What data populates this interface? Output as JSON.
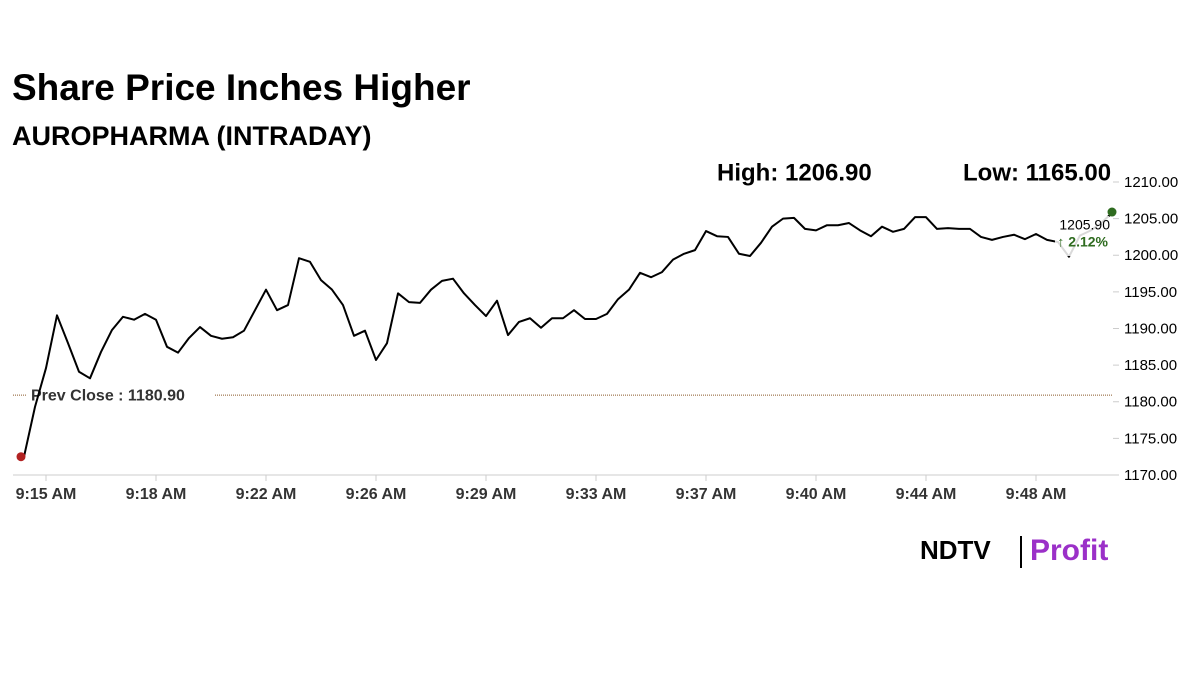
{
  "chart_data": {
    "type": "line",
    "title": "Share Price Inches Higher",
    "subtitle": "AUROPHARMA (INTRADAY)",
    "high_label": "High: 1206.90",
    "low_label": "Low: 1165.00",
    "change_label": "↑ 2.12%",
    "reference_line": {
      "value": 1180.9,
      "label": "Prev Close : 1180.90",
      "color": "#8b5a2b"
    },
    "start_marker_color": "#b22222",
    "end_marker_color": "#2e6b1f",
    "change_color": "#2e6b1f",
    "categories": [
      null,
      null,
      "9:15 AM",
      null,
      null,
      null,
      null,
      null,
      null,
      null,
      null,
      null,
      "9:18 AM",
      null,
      null,
      null,
      null,
      null,
      null,
      null,
      null,
      null,
      "9:22 AM",
      null,
      null,
      null,
      null,
      null,
      null,
      null,
      null,
      null,
      "9:26 AM",
      null,
      null,
      null,
      null,
      null,
      null,
      null,
      null,
      null,
      "9:29 AM",
      null,
      null,
      null,
      null,
      null,
      null,
      null,
      null,
      null,
      "9:33 AM",
      null,
      null,
      null,
      null,
      null,
      null,
      null,
      null,
      null,
      "9:37 AM",
      null,
      null,
      null,
      null,
      null,
      null,
      null,
      null,
      null,
      "9:40 AM",
      null,
      null,
      null,
      null,
      null,
      null,
      null,
      null,
      null,
      "9:44 AM",
      null,
      null,
      null,
      null,
      null,
      null,
      null,
      null,
      null,
      "9:48 AM",
      null,
      null,
      null,
      null,
      null,
      null,
      null
    ],
    "series": [
      {
        "color": "#000000",
        "values": [
          1172.5,
          1179.3,
          1184.6,
          1191.8,
          1188.0,
          1184.1,
          1183.2,
          1186.8,
          1189.8,
          1191.6,
          1191.2,
          1192.0,
          1191.2,
          1187.5,
          1186.7,
          1188.7,
          1190.2,
          1189.0,
          1188.6,
          1188.8,
          1189.7,
          1192.5,
          1195.3,
          1192.5,
          1193.2,
          1199.6,
          1199.1,
          1196.6,
          1195.3,
          1193.2,
          1189.0,
          1189.7,
          1185.7,
          1188.0,
          1194.8,
          1193.6,
          1193.5,
          1195.3,
          1196.5,
          1196.8,
          1194.8,
          1193.2,
          1191.7,
          1193.8,
          1189.1,
          1190.9,
          1191.4,
          1190.1,
          1191.4,
          1191.4,
          1192.5,
          1191.3,
          1191.3,
          1192.0,
          1194.0,
          1195.3,
          1197.6,
          1197.0,
          1197.7,
          1199.4,
          1200.2,
          1200.7,
          1203.3,
          1202.6,
          1202.5,
          1200.2,
          1199.9,
          1201.7,
          1203.9,
          1205.0,
          1205.1,
          1203.6,
          1203.4,
          1204.1,
          1204.1,
          1204.4,
          1203.4,
          1202.6,
          1203.9,
          1203.2,
          1203.6,
          1205.2,
          1205.2,
          1203.6,
          1203.7,
          1203.6,
          1203.6,
          1202.5,
          1202.1,
          1202.5,
          1202.8,
          1202.2,
          1202.9,
          1202.1,
          1201.8,
          1199.8,
          1202.7,
          1203.4,
          1204.5,
          1205.9
        ],
        "value_labels": [
          null,
          null,
          null,
          null,
          null,
          null,
          null,
          null,
          null,
          null,
          null,
          null,
          null,
          null,
          null,
          null,
          null,
          null,
          null,
          null,
          null,
          null,
          null,
          null,
          null,
          null,
          null,
          null,
          null,
          null,
          null,
          null,
          null,
          null,
          null,
          null,
          null,
          null,
          null,
          null,
          null,
          null,
          null,
          null,
          null,
          null,
          null,
          null,
          null,
          null,
          null,
          null,
          null,
          null,
          null,
          null,
          null,
          null,
          null,
          null,
          null,
          null,
          null,
          null,
          null,
          null,
          null,
          null,
          null,
          null,
          null,
          null,
          null,
          null,
          null,
          null,
          null,
          null,
          null,
          null,
          null,
          null,
          null,
          null,
          null,
          null,
          null,
          null,
          null,
          null,
          null,
          null,
          null,
          null,
          null,
          null,
          null,
          null,
          null,
          "1205.90"
        ]
      }
    ],
    "ylim": [
      1170,
      1210
    ],
    "yticks": [
      {
        "value": 1170,
        "label": "1170.00"
      },
      {
        "value": 1175,
        "label": "1175.00"
      },
      {
        "value": 1180,
        "label": "1180.00"
      },
      {
        "value": 1185,
        "label": "1185.00"
      },
      {
        "value": 1190,
        "label": "1190.00"
      },
      {
        "value": 1195,
        "label": "1195.00"
      },
      {
        "value": 1200,
        "label": "1200.00"
      },
      {
        "value": 1205,
        "label": "1205.00"
      },
      {
        "value": 1210,
        "label": "1210.00"
      }
    ],
    "grid": false
  },
  "logo": {
    "brand": "NDTV",
    "product": "Profit"
  }
}
